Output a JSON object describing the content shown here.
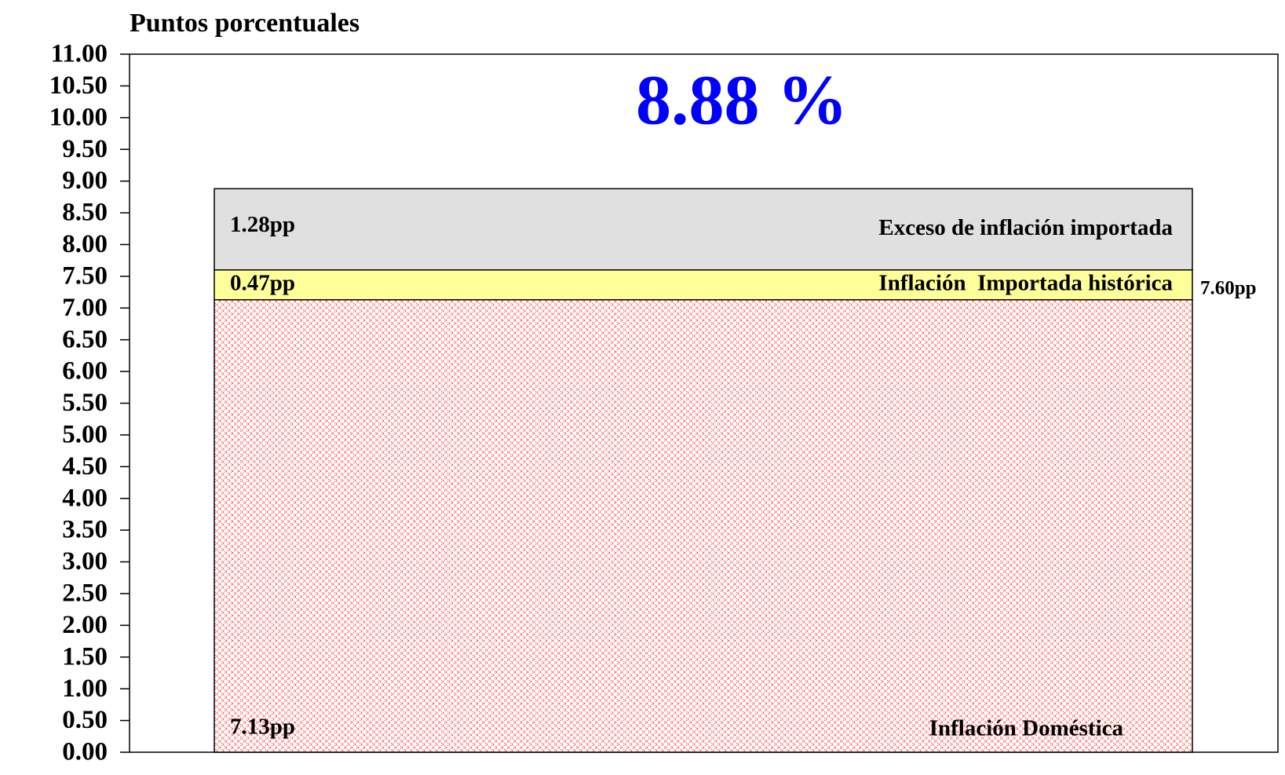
{
  "chart_data": {
    "type": "stacked_bar",
    "y_axis_label": "Puntos porcentuales",
    "categories": [
      null
    ],
    "series": [
      {
        "name": "Inflación Doméstica",
        "color": "#ff4040",
        "pattern": "crosshatch",
        "values": [
          7.13
        ],
        "value_labels": [
          "7.13pp"
        ]
      },
      {
        "name": "Inflación  Importada histórica",
        "color": "#ffff99",
        "values": [
          0.47
        ],
        "value_labels": [
          "0.47pp"
        ]
      },
      {
        "name": "Exceso de inflación importada",
        "color": "#e0e0e0",
        "values": [
          1.28
        ],
        "value_labels": [
          "1.28pp"
        ]
      }
    ],
    "annotations": [
      {
        "text": "8.88 %",
        "color": "#0000ff"
      },
      {
        "text": "7.60pp",
        "color": "#000000"
      }
    ],
    "ylim": [
      0,
      11
    ],
    "yticks": [
      {
        "value": 0,
        "label": "0.00"
      },
      {
        "value": 0.5,
        "label": "0.50"
      },
      {
        "value": 1,
        "label": "1.00"
      },
      {
        "value": 1.5,
        "label": "1.50"
      },
      {
        "value": 2,
        "label": "2.00"
      },
      {
        "value": 2.5,
        "label": "2.50"
      },
      {
        "value": 3,
        "label": "3.00"
      },
      {
        "value": 3.5,
        "label": "3.50"
      },
      {
        "value": 4,
        "label": "4.00"
      },
      {
        "value": 4.5,
        "label": "4.50"
      },
      {
        "value": 5,
        "label": "5.00"
      },
      {
        "value": 5.5,
        "label": "5.50"
      },
      {
        "value": 6,
        "label": "6.00"
      },
      {
        "value": 6.5,
        "label": "6.50"
      },
      {
        "value": 7,
        "label": "7.00"
      },
      {
        "value": 7.5,
        "label": "7.50"
      },
      {
        "value": 8,
        "label": "8.00"
      },
      {
        "value": 8.5,
        "label": "8.50"
      },
      {
        "value": 9,
        "label": "9.00"
      },
      {
        "value": 9.5,
        "label": "9.50"
      },
      {
        "value": 10,
        "label": "10.00"
      },
      {
        "value": 10.5,
        "label": "10.50"
      },
      {
        "value": 11,
        "label": "11.00"
      }
    ],
    "grid": false
  }
}
